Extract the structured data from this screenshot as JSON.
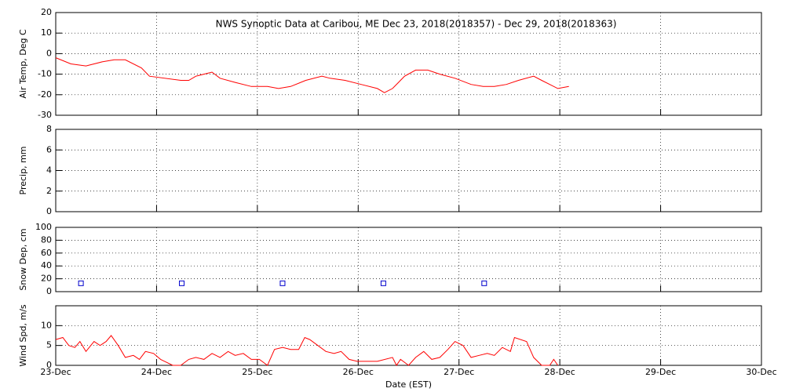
{
  "chart_data": [
    {
      "type": "line",
      "title": "NWS Synoptic Data at Caribou, ME   Dec 23, 2018(2018357) - Dec 29, 2018(2018363)",
      "y_label": "Air Temp, Deg C",
      "xlim": [
        0,
        7
      ],
      "xticks": [
        0,
        1,
        2,
        3,
        4,
        5,
        6,
        7
      ],
      "ylim": [
        -30,
        20
      ],
      "yticks": [
        -30,
        -20,
        -10,
        0,
        10,
        20
      ],
      "grid": true,
      "series": [
        {
          "color": "#ff0000",
          "x": [
            0,
            0.15,
            0.3,
            0.46,
            0.58,
            0.69,
            0.85,
            0.93,
            1.24,
            1.32,
            1.39,
            1.55,
            1.63,
            1.78,
            1.94,
            2.1,
            2.21,
            2.33,
            2.48,
            2.64,
            2.72,
            2.87,
            3.03,
            3.19,
            3.26,
            3.34,
            3.46,
            3.57,
            3.69,
            3.81,
            3.96,
            4.12,
            4.24,
            4.35,
            4.47,
            4.59,
            4.74,
            4.82,
            4.9,
            4.98,
            5.09
          ],
          "values": [
            -2,
            -5,
            -6,
            -4,
            -3,
            -3,
            -7,
            -11,
            -13,
            -13,
            -11,
            -9,
            -12,
            -14,
            -16,
            -16,
            -17,
            -16,
            -13,
            -11,
            -12,
            -13,
            -15,
            -17,
            -19,
            -17,
            -11,
            -8,
            -8,
            -10,
            -12,
            -15,
            -16,
            -16,
            -15,
            -13,
            -11,
            -13,
            -15,
            -17,
            -16
          ]
        }
      ]
    },
    {
      "type": "line",
      "y_label": "Precip, mm",
      "xlim": [
        0,
        7
      ],
      "xticks": [
        0,
        1,
        2,
        3,
        4,
        5,
        6,
        7
      ],
      "ylim": [
        0,
        8
      ],
      "yticks": [
        0,
        2,
        4,
        6,
        8
      ],
      "grid": true,
      "series": []
    },
    {
      "type": "scatter",
      "y_label": "Snow Dep, cm",
      "xlim": [
        0,
        7
      ],
      "xticks": [
        0,
        1,
        2,
        3,
        4,
        5,
        6,
        7
      ],
      "ylim": [
        0,
        100
      ],
      "yticks": [
        0,
        20,
        40,
        60,
        80,
        100
      ],
      "grid": true,
      "series": [
        {
          "color": "#0000cc",
          "x": [
            0.25,
            1.25,
            2.25,
            3.25,
            4.25
          ],
          "values": [
            13,
            13,
            13,
            13,
            13
          ]
        }
      ]
    },
    {
      "type": "line",
      "y_label": "Wind Spd, m/s",
      "x_label": "Date (EST)",
      "xlim": [
        0,
        7
      ],
      "xticks": [
        {
          "value": 0,
          "label": "23-Dec"
        },
        {
          "value": 1,
          "label": "24-Dec"
        },
        {
          "value": 2,
          "label": "25-Dec"
        },
        {
          "value": 3,
          "label": "26-Dec"
        },
        {
          "value": 4,
          "label": "27-Dec"
        },
        {
          "value": 5,
          "label": "28-Dec"
        },
        {
          "value": 6,
          "label": "29-Dec"
        },
        {
          "value": 7,
          "label": "30-Dec"
        }
      ],
      "ylim": [
        0,
        15
      ],
      "yticks": [
        0,
        5,
        10
      ],
      "grid": true,
      "series": [
        {
          "color": "#ff0000",
          "x": [
            0,
            0.07,
            0.13,
            0.19,
            0.24,
            0.3,
            0.38,
            0.44,
            0.5,
            0.55,
            0.62,
            0.69,
            0.77,
            0.83,
            0.89,
            0.97,
            1.04,
            1.08,
            1.16,
            1.24,
            1.32,
            1.39,
            1.47,
            1.55,
            1.63,
            1.71,
            1.78,
            1.86,
            1.94,
            2.02,
            2.1,
            2.17,
            2.25,
            2.33,
            2.41,
            2.47,
            2.52,
            2.6,
            2.68,
            2.76,
            2.83,
            2.91,
            2.99,
            3.19,
            3.34,
            3.38,
            3.42,
            3.5,
            3.57,
            3.65,
            3.73,
            3.81,
            3.89,
            3.96,
            4.04,
            4.12,
            4.2,
            4.28,
            4.35,
            4.43,
            4.51,
            4.55,
            4.67,
            4.74,
            4.82,
            4.9,
            4.94,
            4.98
          ],
          "values": [
            6.5,
            7,
            5,
            4.5,
            6,
            3.5,
            6,
            5,
            6,
            7.5,
            5,
            2,
            2.5,
            1.5,
            3.5,
            3,
            1.5,
            1,
            0,
            0,
            1.5,
            2,
            1.5,
            3,
            2,
            3.5,
            2.5,
            3,
            1.5,
            1.5,
            0,
            4,
            4.5,
            4,
            4,
            7,
            6.5,
            5,
            3.5,
            3,
            3.5,
            1.5,
            1,
            1,
            2,
            0,
            1.5,
            0,
            2,
            3.5,
            1.5,
            2,
            4,
            6,
            5,
            2,
            2.5,
            3,
            2.5,
            4.5,
            3.5,
            7,
            6,
            2,
            0,
            0,
            1.5,
            0
          ]
        }
      ]
    }
  ]
}
